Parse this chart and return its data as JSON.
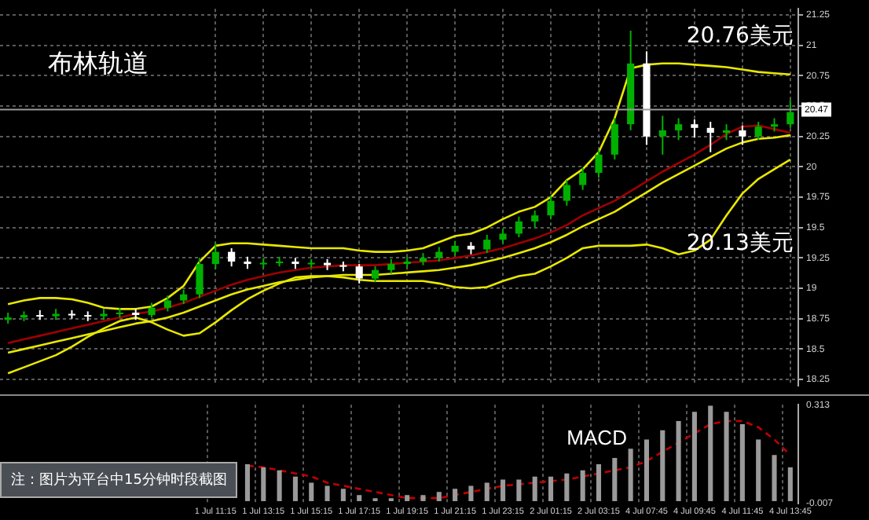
{
  "chart_data": [
    {
      "type": "candlestick",
      "annotations": [
        "布林轨道",
        "20.76美元",
        "20.13美元"
      ],
      "categories": [
        null,
        null,
        null,
        null,
        null,
        null,
        null,
        null,
        null,
        null,
        null,
        null,
        null,
        null,
        null,
        null,
        null,
        null,
        null,
        null,
        null,
        null,
        null,
        null,
        null,
        null,
        null,
        null,
        null,
        null,
        null,
        null,
        null,
        null,
        null,
        null,
        null,
        null,
        null,
        null,
        null,
        null,
        null,
        null,
        null,
        null,
        null,
        null,
        null,
        null
      ],
      "ohlc": [
        [
          18.74,
          18.8,
          18.71,
          18.76
        ],
        [
          18.76,
          18.81,
          18.73,
          18.78
        ],
        [
          18.78,
          18.82,
          18.74,
          18.77
        ],
        [
          18.77,
          18.83,
          18.74,
          18.79
        ],
        [
          18.79,
          18.82,
          18.75,
          18.78
        ],
        [
          18.78,
          18.81,
          18.73,
          18.77
        ],
        [
          18.77,
          18.83,
          18.74,
          18.79
        ],
        [
          18.79,
          18.84,
          18.76,
          18.8
        ],
        [
          18.8,
          18.83,
          18.74,
          18.78
        ],
        [
          18.78,
          18.88,
          18.76,
          18.84
        ],
        [
          18.84,
          18.94,
          18.81,
          18.9
        ],
        [
          18.9,
          18.99,
          18.87,
          18.95
        ],
        [
          18.95,
          19.25,
          18.92,
          19.2
        ],
        [
          19.2,
          19.37,
          19.16,
          19.3
        ],
        [
          19.3,
          19.33,
          19.18,
          19.22
        ],
        [
          19.22,
          19.26,
          19.16,
          19.2
        ],
        [
          19.2,
          19.25,
          19.17,
          19.21
        ],
        [
          19.21,
          19.26,
          19.18,
          19.22
        ],
        [
          19.22,
          19.25,
          19.16,
          19.2
        ],
        [
          19.2,
          19.24,
          19.17,
          19.21
        ],
        [
          19.21,
          19.24,
          19.15,
          19.19
        ],
        [
          19.19,
          19.22,
          19.14,
          19.18
        ],
        [
          19.18,
          19.2,
          19.04,
          19.08
        ],
        [
          19.08,
          19.18,
          19.05,
          19.15
        ],
        [
          19.15,
          19.24,
          19.12,
          19.2
        ],
        [
          19.2,
          19.26,
          19.17,
          19.22
        ],
        [
          19.22,
          19.29,
          19.19,
          19.25
        ],
        [
          19.25,
          19.34,
          19.22,
          19.3
        ],
        [
          19.3,
          19.39,
          19.27,
          19.35
        ],
        [
          19.35,
          19.38,
          19.28,
          19.32
        ],
        [
          19.32,
          19.44,
          19.29,
          19.4
        ],
        [
          19.4,
          19.49,
          19.37,
          19.45
        ],
        [
          19.45,
          19.59,
          19.42,
          19.55
        ],
        [
          19.55,
          19.64,
          19.5,
          19.6
        ],
        [
          19.6,
          19.76,
          19.57,
          19.72
        ],
        [
          19.72,
          19.89,
          19.68,
          19.85
        ],
        [
          19.85,
          19.99,
          19.81,
          19.95
        ],
        [
          19.95,
          20.14,
          19.91,
          20.1
        ],
        [
          20.1,
          20.4,
          20.06,
          20.35
        ],
        [
          20.35,
          21.12,
          20.3,
          20.85
        ],
        [
          20.85,
          20.95,
          20.18,
          20.25
        ],
        [
          20.25,
          20.42,
          20.1,
          20.3
        ],
        [
          20.3,
          20.4,
          20.22,
          20.35
        ],
        [
          20.35,
          20.39,
          20.24,
          20.32
        ],
        [
          20.32,
          20.37,
          20.12,
          20.28
        ],
        [
          20.28,
          20.35,
          20.22,
          20.3
        ],
        [
          20.3,
          20.34,
          20.18,
          20.25
        ],
        [
          20.25,
          20.37,
          20.22,
          20.33
        ],
        [
          20.33,
          20.4,
          20.29,
          20.35
        ],
        [
          20.35,
          20.55,
          20.32,
          20.45
        ]
      ],
      "colors": [
        "#00b000",
        "#00b000",
        "#ffffff",
        "#00b000",
        "#ffffff",
        "#ffffff",
        "#00b000",
        "#00b000",
        "#ffffff",
        "#00b000",
        "#00b000",
        "#00b000",
        "#00b000",
        "#00b000",
        "#ffffff",
        "#ffffff",
        "#00b000",
        "#00b000",
        "#ffffff",
        "#00b000",
        "#ffffff",
        "#ffffff",
        "#ffffff",
        "#00b000",
        "#00b000",
        "#00b000",
        "#00b000",
        "#00b000",
        "#00b000",
        "#ffffff",
        "#00b000",
        "#00b000",
        "#00b000",
        "#00b000",
        "#00b000",
        "#00b000",
        "#00b000",
        "#00b000",
        "#00b000",
        "#00b000",
        "#ffffff",
        "#00b000",
        "#00b000",
        "#ffffff",
        "#ffffff",
        "#00b000",
        "#ffffff",
        "#00b000",
        "#00b000",
        "#00b000"
      ],
      "series": [
        {
          "type": "line",
          "color": "#e8e800",
          "values": [
            18.87,
            18.9,
            18.92,
            18.92,
            18.91,
            18.88,
            18.84,
            18.83,
            18.83,
            18.85,
            18.92,
            19.02,
            19.22,
            19.35,
            19.37,
            19.37,
            19.36,
            19.35,
            19.34,
            19.33,
            19.33,
            19.33,
            19.31,
            19.3,
            19.3,
            19.31,
            19.33,
            19.38,
            19.43,
            19.45,
            19.5,
            19.57,
            19.63,
            19.67,
            19.75,
            19.89,
            19.98,
            20.12,
            20.4,
            20.81,
            20.84,
            20.85,
            20.85,
            20.84,
            20.83,
            20.82,
            20.8,
            20.78,
            20.77,
            20.76
          ]
        },
        {
          "type": "line",
          "color": "#a00000",
          "values": [
            18.55,
            18.58,
            18.61,
            18.64,
            18.67,
            18.7,
            18.73,
            18.76,
            18.79,
            18.81,
            18.84,
            18.88,
            18.93,
            18.98,
            19.03,
            19.07,
            19.1,
            19.13,
            19.15,
            19.17,
            19.18,
            19.19,
            19.19,
            19.19,
            19.2,
            19.21,
            19.22,
            19.23,
            19.25,
            19.27,
            19.3,
            19.33,
            19.37,
            19.41,
            19.46,
            19.52,
            19.6,
            19.66,
            19.72,
            19.8,
            19.88,
            19.96,
            20.03,
            20.1,
            20.18,
            20.27,
            20.33,
            20.34,
            20.31,
            20.28
          ]
        },
        {
          "type": "line",
          "color": "#e8e800",
          "values": [
            18.47,
            18.5,
            18.53,
            18.56,
            18.59,
            18.62,
            18.65,
            18.68,
            18.71,
            18.73,
            18.76,
            18.8,
            18.85,
            18.9,
            18.95,
            18.99,
            19.02,
            19.05,
            19.07,
            19.09,
            19.1,
            19.11,
            19.11,
            19.11,
            19.12,
            19.13,
            19.14,
            19.15,
            19.17,
            19.19,
            19.22,
            19.25,
            19.29,
            19.33,
            19.38,
            19.44,
            19.51,
            19.57,
            19.63,
            19.71,
            19.79,
            19.87,
            19.94,
            20.01,
            20.08,
            20.15,
            20.2,
            20.23,
            20.24,
            20.26
          ]
        },
        {
          "type": "line",
          "color": "#e8e800",
          "values": [
            18.3,
            18.35,
            18.4,
            18.45,
            18.52,
            18.6,
            18.67,
            18.73,
            18.76,
            18.72,
            18.66,
            18.61,
            18.63,
            18.72,
            18.82,
            18.91,
            18.98,
            19.04,
            19.09,
            19.1,
            19.1,
            19.09,
            19.07,
            19.06,
            19.06,
            19.06,
            19.06,
            19.04,
            19.01,
            19.0,
            19.01,
            19.06,
            19.1,
            19.12,
            19.18,
            19.25,
            19.33,
            19.35,
            19.35,
            19.35,
            19.36,
            19.33,
            19.28,
            19.31,
            19.4,
            19.6,
            19.78,
            19.9,
            19.98,
            20.06
          ]
        }
      ],
      "ylim": [
        18.2,
        21.3
      ],
      "yticks": [
        18.25,
        18.5,
        18.75,
        19,
        19.25,
        19.5,
        19.75,
        20,
        20.25,
        20.5,
        20.75,
        21,
        21.25
      ],
      "grid": true,
      "tick_labels": "y",
      "ref_lines": [
        {
          "axis": "y",
          "value": 20.47,
          "label": "20.47",
          "color": "#9a9a9a"
        }
      ]
    },
    {
      "type": "bar",
      "title": "MACD",
      "annotations": [
        "注：图片为平台中15分钟时段截图"
      ],
      "categories": [
        null,
        null,
        null,
        null,
        null,
        null,
        null,
        null,
        null,
        null,
        null,
        null,
        null,
        "1 Jul 11:15",
        null,
        null,
        "1 Jul 13:15",
        null,
        null,
        "1 Jul 15:15",
        null,
        null,
        "1 Jul 17:15",
        null,
        null,
        "1 Jul 19:15",
        null,
        null,
        "1 Jul 21:15",
        null,
        null,
        "1 Jul 23:15",
        null,
        null,
        "2 Jul 01:15",
        null,
        null,
        "2 Jul 03:15",
        null,
        null,
        "4 Jul 07:45",
        null,
        null,
        "4 Jul 09:45",
        null,
        null,
        "4 Jul 11:45",
        null,
        null,
        "4 Jul 13:45"
      ],
      "series": [
        {
          "type": "bar",
          "color": "#9a9a9a",
          "values": [
            null,
            null,
            null,
            null,
            null,
            null,
            null,
            null,
            null,
            null,
            null,
            null,
            null,
            null,
            null,
            0.12,
            0.11,
            0.1,
            0.08,
            0.06,
            0.05,
            0.04,
            0.02,
            0.01,
            0.01,
            0.02,
            0.02,
            0.03,
            0.04,
            0.05,
            0.06,
            0.07,
            0.07,
            0.08,
            0.08,
            0.09,
            0.1,
            0.12,
            0.14,
            0.17,
            0.2,
            0.23,
            0.26,
            0.29,
            0.31,
            0.29,
            0.25,
            0.2,
            0.15,
            0.11
          ]
        },
        {
          "type": "line",
          "color": "#c00000",
          "line_style": "dashed",
          "values": [
            null,
            null,
            null,
            null,
            null,
            null,
            null,
            null,
            null,
            null,
            null,
            null,
            null,
            null,
            null,
            0.115,
            0.11,
            0.1,
            0.09,
            0.08,
            0.06,
            0.05,
            0.04,
            0.03,
            0.02,
            0.01,
            0.01,
            0.01,
            0.02,
            0.03,
            0.04,
            0.05,
            0.055,
            0.06,
            0.065,
            0.07,
            0.08,
            0.09,
            0.1,
            0.11,
            0.13,
            0.16,
            0.19,
            0.22,
            0.25,
            0.26,
            0.26,
            0.24,
            0.2,
            0.15
          ]
        }
      ],
      "ylim": [
        -0.007,
        0.313
      ],
      "yticks": [
        0.313,
        -0.007
      ],
      "grid": "x"
    }
  ]
}
